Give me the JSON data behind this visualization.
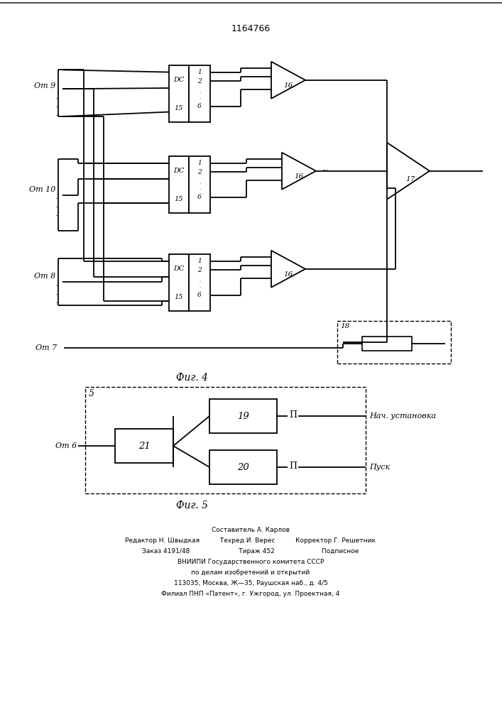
{
  "title": "1164766",
  "fig4_label": "Фиг. 4",
  "fig5_label": "Фиг. 5",
  "bg_color": "#ffffff",
  "lw": 1.3
}
